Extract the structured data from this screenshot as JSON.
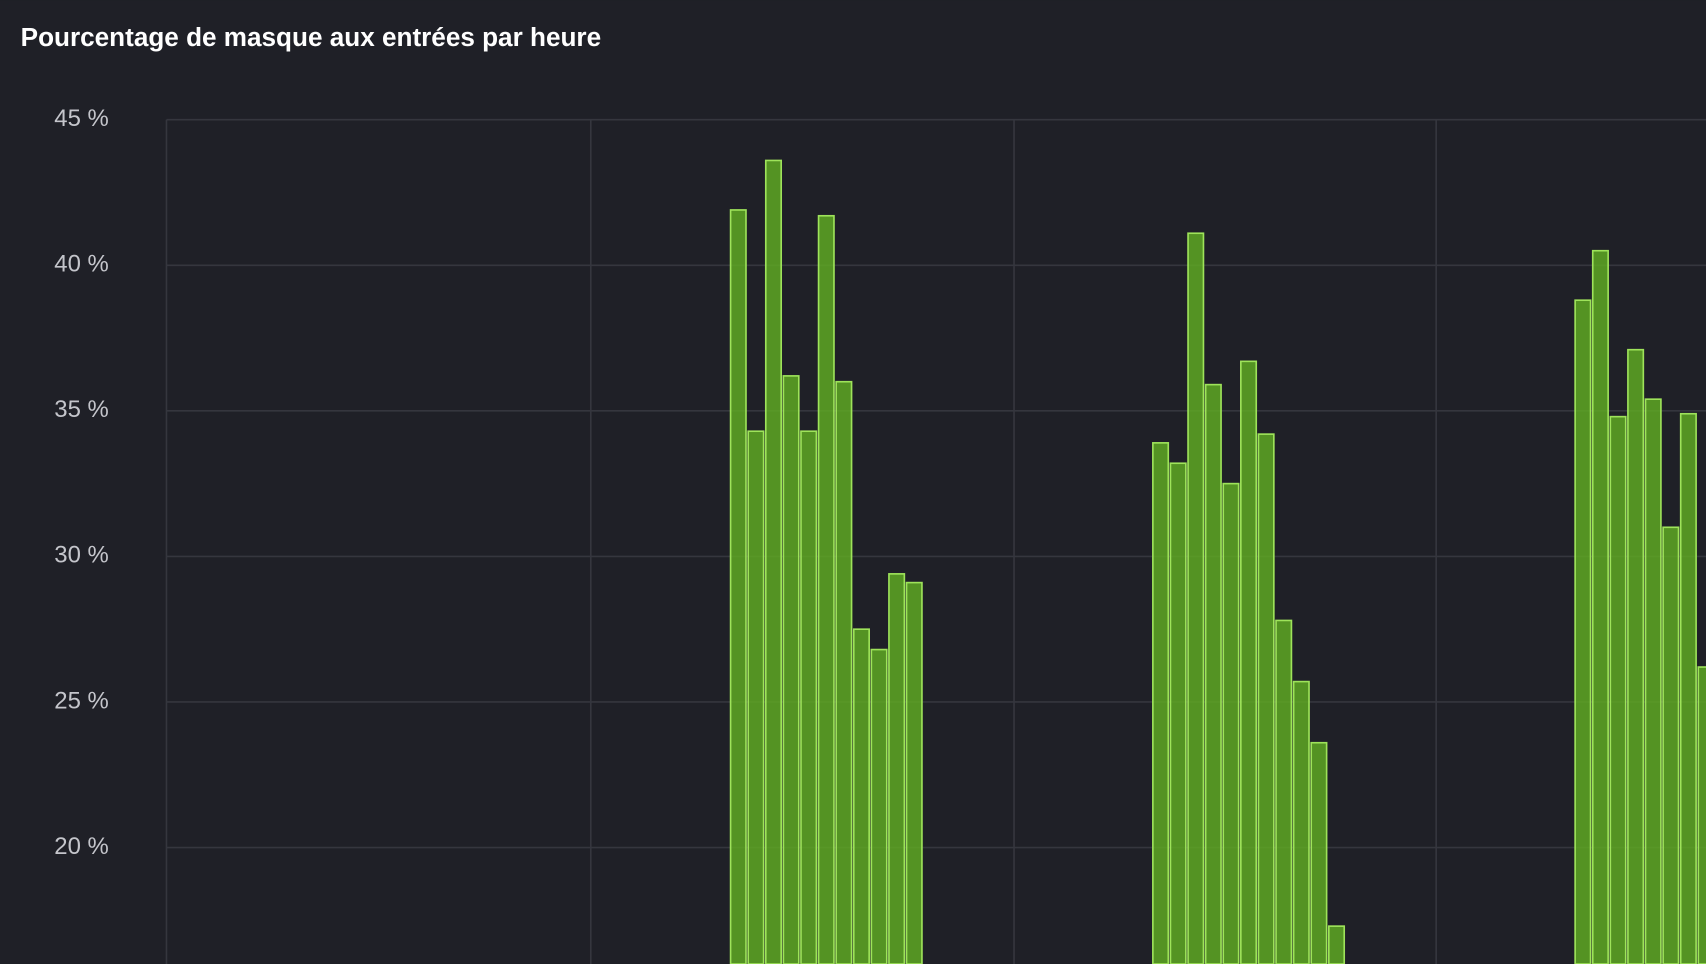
{
  "chart_data": {
    "type": "bar",
    "title": "Pourcentage de masque aux entrées par heure",
    "x": [
      32,
      33,
      34,
      35,
      36,
      37,
      38,
      39,
      40,
      41,
      42,
      56,
      57,
      58,
      59,
      60,
      61,
      62,
      63,
      64,
      65,
      66,
      80,
      81,
      82,
      83,
      84,
      85,
      86,
      87
    ],
    "values": [
      41.9,
      34.3,
      43.6,
      36.2,
      34.3,
      41.7,
      36.0,
      27.5,
      26.8,
      29.4,
      29.1,
      33.9,
      33.2,
      41.1,
      35.9,
      32.5,
      36.7,
      34.2,
      27.8,
      25.7,
      23.6,
      17.3,
      38.8,
      40.5,
      34.8,
      37.1,
      35.4,
      31.0,
      34.9,
      26.2
    ],
    "color": "#5ea823",
    "xlim": [
      0,
      87.5
    ],
    "ylim": [
      16,
      45
    ],
    "yticks": [
      {
        "value": 20,
        "label": "20 %"
      },
      {
        "value": 25,
        "label": "25 %"
      },
      {
        "value": 30,
        "label": "30 %"
      },
      {
        "value": 35,
        "label": "35 %"
      },
      {
        "value": 40,
        "label": "40 %"
      },
      {
        "value": 45,
        "label": "45 %"
      }
    ],
    "grid": true
  }
}
